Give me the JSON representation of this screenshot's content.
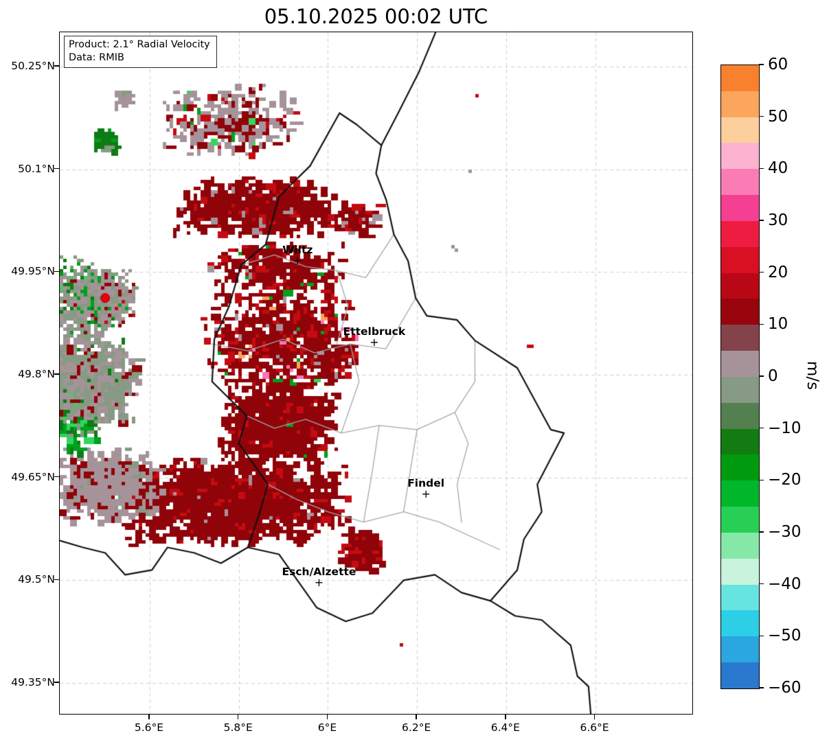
{
  "title": "05.10.2025 00:02 UTC",
  "info_box": {
    "product": "Product: 2.1° Radial Velocity",
    "data_source": "Data: RMIB"
  },
  "map": {
    "extent": {
      "lon_min": 5.398,
      "lon_max": 6.818,
      "lat_min": 49.305,
      "lat_max": 50.3
    },
    "x_ticks": [
      {
        "label": "5.6°E",
        "lon": 5.6
      },
      {
        "label": "5.8°E",
        "lon": 5.8
      },
      {
        "label": "6°E",
        "lon": 6.0
      },
      {
        "label": "6.2°E",
        "lon": 6.2
      },
      {
        "label": "6.4°E",
        "lon": 6.4
      },
      {
        "label": "6.6°E",
        "lon": 6.6
      }
    ],
    "y_ticks": [
      {
        "label": "50.25°N",
        "lat": 50.25
      },
      {
        "label": "50.1°N",
        "lat": 50.1
      },
      {
        "label": "49.95°N",
        "lat": 49.95
      },
      {
        "label": "49.8°N",
        "lat": 49.8
      },
      {
        "label": "49.65°N",
        "lat": 49.65
      },
      {
        "label": "49.5°N",
        "lat": 49.5
      },
      {
        "label": "49.35°N",
        "lat": 49.35
      }
    ],
    "cities": [
      {
        "name": "Wiltz",
        "lon": 5.932,
        "lat": 49.966
      },
      {
        "name": "Ettelbruck",
        "lon": 6.104,
        "lat": 49.847
      },
      {
        "name": "Findel",
        "lon": 6.22,
        "lat": 49.626
      },
      {
        "name": "Esch/Alzette",
        "lon": 5.98,
        "lat": 49.496
      }
    ],
    "radar_site": {
      "lon": 5.5,
      "lat": 49.912,
      "color": "#e8000b"
    },
    "grid_color": "#cfcfcf",
    "palette": {
      "dr": "#8f0309",
      "r": "#c50b12",
      "br": "#e51e25",
      "mg": "#a6939a",
      "gg": "#879a83",
      "dg": "#0e7c16",
      "g": "#00a01c",
      "lg": "#2fd85e",
      "pk": "#fb74b8",
      "or": "#fba55e",
      "cy": "#6fe8e4"
    },
    "radial": {
      "base": 46,
      "lobe": 68,
      "dir": 170,
      "step_deg": 1.4,
      "skip": 0.1,
      "palette_east": [
        [
          "mg",
          0.55
        ],
        [
          "gg",
          0.25
        ],
        [
          "dr",
          0.09
        ],
        [
          "r",
          0.03
        ],
        [
          "dg",
          0.04
        ],
        [
          "g",
          0.04
        ]
      ],
      "palette_west": [
        [
          "gg",
          0.42
        ],
        [
          "mg",
          0.38
        ],
        [
          "dg",
          0.08
        ],
        [
          "g",
          0.08
        ],
        [
          "lg",
          0.02
        ],
        [
          "dr",
          0.02
        ]
      ]
    },
    "echoes": [
      {
        "name": "nw-scatter",
        "lon": 5.78,
        "lat": 50.17,
        "sx": 0.16,
        "sy": 0.055,
        "n": 300,
        "palette": [
          [
            "mg",
            0.58
          ],
          [
            "dr",
            0.3
          ],
          [
            "g",
            0.04
          ],
          [
            "lg",
            0.03
          ],
          [
            "r",
            0.05
          ]
        ]
      },
      {
        "name": "nw-green-patch",
        "lon": 5.495,
        "lat": 50.145,
        "sx": 0.03,
        "sy": 0.02,
        "n": 55,
        "palette": [
          [
            "dg",
            0.7
          ],
          [
            "g",
            0.22
          ],
          [
            "gg",
            0.08
          ]
        ]
      },
      {
        "name": "nw-gray-patch",
        "lon": 5.545,
        "lat": 50.205,
        "sx": 0.025,
        "sy": 0.013,
        "n": 22,
        "palette": [
          [
            "mg",
            0.75
          ],
          [
            "gg",
            0.25
          ]
        ]
      },
      {
        "name": "north-red-band",
        "lon": 5.845,
        "lat": 50.045,
        "sx": 0.2,
        "sy": 0.045,
        "n": 620,
        "palette": [
          [
            "dr",
            0.85
          ],
          [
            "r",
            0.12
          ],
          [
            "mg",
            0.03
          ]
        ]
      },
      {
        "name": "north-band-east-specks",
        "lon": 6.065,
        "lat": 50.025,
        "sx": 0.06,
        "sy": 0.035,
        "n": 60,
        "palette": [
          [
            "dr",
            0.78
          ],
          [
            "r",
            0.12
          ],
          [
            "mg",
            0.1
          ]
        ]
      },
      {
        "name": "wiltz-band",
        "lon": 5.885,
        "lat": 49.952,
        "sx": 0.16,
        "sy": 0.045,
        "n": 330,
        "palette": [
          [
            "dr",
            0.8
          ],
          [
            "r",
            0.14
          ],
          [
            "mg",
            0.03
          ],
          [
            "g",
            0.03
          ]
        ]
      },
      {
        "name": "central-cluster",
        "lon": 5.895,
        "lat": 49.852,
        "sx": 0.18,
        "sy": 0.075,
        "n": 680,
        "palette": [
          [
            "dr",
            0.76
          ],
          [
            "r",
            0.16
          ],
          [
            "mg",
            0.03
          ],
          [
            "pk",
            0.02
          ],
          [
            "or",
            0.01
          ],
          [
            "g",
            0.02
          ]
        ]
      },
      {
        "name": "ettelbruck-west-specks",
        "lon": 6.02,
        "lat": 49.83,
        "sx": 0.05,
        "sy": 0.035,
        "n": 45,
        "palette": [
          [
            "dr",
            0.7
          ],
          [
            "r",
            0.2
          ],
          [
            "mg",
            0.1
          ]
        ]
      },
      {
        "name": "central-red-mass",
        "lon": 5.885,
        "lat": 49.73,
        "sx": 0.14,
        "sy": 0.065,
        "n": 900,
        "palette": [
          [
            "dr",
            0.88
          ],
          [
            "r",
            0.1
          ],
          [
            "g",
            0.02
          ]
        ]
      },
      {
        "name": "south-red-band",
        "lon": 5.79,
        "lat": 49.615,
        "sx": 0.26,
        "sy": 0.065,
        "n": 1500,
        "palette": [
          [
            "dr",
            0.9
          ],
          [
            "r",
            0.08
          ],
          [
            "mg",
            0.02
          ]
        ]
      },
      {
        "name": "southwest-mauve-band",
        "lon": 5.5,
        "lat": 49.64,
        "sx": 0.13,
        "sy": 0.055,
        "n": 560,
        "palette": [
          [
            "mg",
            0.78
          ],
          [
            "dr",
            0.18
          ],
          [
            "gg",
            0.04
          ]
        ]
      },
      {
        "name": "esch-blob",
        "lon": 6.075,
        "lat": 49.545,
        "sx": 0.05,
        "sy": 0.033,
        "n": 170,
        "palette": [
          [
            "dr",
            0.85
          ],
          [
            "r",
            0.15
          ]
        ]
      },
      {
        "name": "west-green-cluster",
        "lon": 5.432,
        "lat": 49.745,
        "sx": 0.06,
        "sy": 0.06,
        "n": 260,
        "palette": [
          [
            "g",
            0.32
          ],
          [
            "dg",
            0.3
          ],
          [
            "lg",
            0.14
          ],
          [
            "gg",
            0.24
          ]
        ]
      },
      {
        "name": "radar-southwest-skirt",
        "lon": 5.47,
        "lat": 49.795,
        "sx": 0.11,
        "sy": 0.07,
        "n": 480,
        "palette": [
          [
            "gg",
            0.44
          ],
          [
            "mg",
            0.44
          ],
          [
            "dg",
            0.05
          ],
          [
            "dr",
            0.07
          ]
        ]
      }
    ],
    "specks": [
      [
        6.335,
        50.205,
        "r"
      ],
      [
        6.318,
        50.095,
        "mg"
      ],
      [
        6.279,
        49.985,
        "gg"
      ],
      [
        6.292,
        49.98,
        "mg"
      ],
      [
        6.447,
        49.843,
        "r"
      ],
      [
        6.163,
        49.407,
        "r"
      ],
      [
        5.415,
        50.275,
        "mg"
      ],
      [
        5.45,
        50.287,
        "gg"
      ],
      [
        6.02,
        49.885,
        "g"
      ],
      [
        5.975,
        49.79,
        "lg"
      ]
    ],
    "borders": {
      "country_color": "#111111",
      "region_color": "#a6a6a6",
      "country": [
        [
          [
            6.245,
            50.305
          ],
          [
            6.205,
            50.243
          ],
          [
            6.156,
            50.18
          ],
          [
            6.12,
            50.135
          ]
        ],
        [
          [
            6.026,
            50.182
          ],
          [
            6.065,
            50.165
          ],
          [
            6.12,
            50.135
          ],
          [
            6.108,
            50.094
          ],
          [
            6.131,
            50.055
          ],
          [
            6.148,
            50.005
          ],
          [
            6.18,
            49.966
          ],
          [
            6.197,
            49.912
          ],
          [
            6.222,
            49.886
          ],
          [
            6.29,
            49.88
          ],
          [
            6.33,
            49.85
          ],
          [
            6.425,
            49.81
          ],
          [
            6.5,
            49.72
          ],
          [
            6.53,
            49.715
          ],
          [
            6.47,
            49.64
          ],
          [
            6.48,
            49.6
          ],
          [
            6.44,
            49.56
          ],
          [
            6.425,
            49.515
          ],
          [
            6.365,
            49.47
          ],
          [
            6.3,
            49.482
          ],
          [
            6.24,
            49.508
          ],
          [
            6.17,
            49.5
          ],
          [
            6.1,
            49.452
          ],
          [
            6.04,
            49.44
          ],
          [
            5.975,
            49.46
          ],
          [
            5.89,
            49.538
          ],
          [
            5.82,
            49.548
          ],
          [
            5.845,
            49.595
          ],
          [
            5.865,
            49.64
          ],
          [
            5.8,
            49.7
          ],
          [
            5.818,
            49.74
          ],
          [
            5.74,
            49.79
          ],
          [
            5.745,
            49.852
          ],
          [
            5.778,
            49.9
          ],
          [
            5.805,
            49.96
          ],
          [
            5.86,
            49.99
          ],
          [
            5.89,
            50.06
          ],
          [
            5.96,
            50.105
          ],
          [
            6.026,
            50.182
          ]
        ],
        [
          [
            5.82,
            49.548
          ],
          [
            5.76,
            49.525
          ],
          [
            5.7,
            49.54
          ],
          [
            5.64,
            49.548
          ],
          [
            5.605,
            49.515
          ],
          [
            5.545,
            49.508
          ],
          [
            5.5,
            49.54
          ],
          [
            5.45,
            49.548
          ],
          [
            5.398,
            49.558
          ]
        ],
        [
          [
            6.365,
            49.47
          ],
          [
            6.42,
            49.448
          ],
          [
            6.48,
            49.442
          ],
          [
            6.545,
            49.405
          ],
          [
            6.56,
            49.36
          ],
          [
            6.585,
            49.345
          ],
          [
            6.59,
            49.305
          ]
        ]
      ],
      "regions": [
        [
          [
            5.805,
            49.96
          ],
          [
            5.88,
            49.975
          ],
          [
            5.95,
            49.958
          ],
          [
            6.02,
            49.952
          ],
          [
            6.085,
            49.942
          ],
          [
            6.148,
            50.005
          ]
        ],
        [
          [
            5.74,
            49.845
          ],
          [
            5.82,
            49.835
          ],
          [
            5.9,
            49.852
          ],
          [
            5.97,
            49.832
          ],
          [
            6.05,
            49.845
          ],
          [
            6.13,
            49.838
          ],
          [
            6.197,
            49.912
          ]
        ],
        [
          [
            5.818,
            49.74
          ],
          [
            5.88,
            49.722
          ],
          [
            5.95,
            49.735
          ],
          [
            6.03,
            49.715
          ],
          [
            6.115,
            49.726
          ],
          [
            6.2,
            49.72
          ],
          [
            6.285,
            49.745
          ]
        ],
        [
          [
            5.865,
            49.64
          ],
          [
            5.93,
            49.618
          ],
          [
            6.0,
            49.6
          ],
          [
            6.08,
            49.585
          ],
          [
            6.17,
            49.6
          ],
          [
            6.25,
            49.585
          ],
          [
            6.385,
            49.545
          ]
        ],
        [
          [
            6.02,
            49.952
          ],
          [
            6.045,
            49.9
          ],
          [
            6.02,
            49.845
          ]
        ],
        [
          [
            6.05,
            49.845
          ],
          [
            6.07,
            49.79
          ],
          [
            6.03,
            49.715
          ]
        ],
        [
          [
            6.285,
            49.745
          ],
          [
            6.33,
            49.79
          ],
          [
            6.33,
            49.85
          ]
        ],
        [
          [
            6.285,
            49.745
          ],
          [
            6.315,
            49.7
          ],
          [
            6.29,
            49.64
          ],
          [
            6.3,
            49.585
          ]
        ],
        [
          [
            6.2,
            49.72
          ],
          [
            6.185,
            49.66
          ],
          [
            6.17,
            49.6
          ]
        ],
        [
          [
            6.115,
            49.726
          ],
          [
            6.1,
            49.66
          ],
          [
            6.08,
            49.585
          ]
        ]
      ]
    }
  },
  "colorbar": {
    "unit": "m/s",
    "vmin": -60,
    "vmax": 60,
    "tick_values": [
      60,
      50,
      40,
      30,
      20,
      10,
      0,
      -10,
      -20,
      -30,
      -40,
      -50,
      -60
    ],
    "tick_labels": [
      "60",
      "50",
      "40",
      "30",
      "20",
      "10",
      "0",
      "−10",
      "−20",
      "−30",
      "−40",
      "−50",
      "−60"
    ],
    "colors_top_to_bottom": [
      "#f9812e",
      "#fba55d",
      "#fdcf9d",
      "#fdb3cf",
      "#fb7cb5",
      "#f53f92",
      "#ee1c40",
      "#d91022",
      "#ba0715",
      "#99030c",
      "#84434b",
      "#a6939a",
      "#879a83",
      "#54804f",
      "#127c12",
      "#009a10",
      "#00b62a",
      "#27d055",
      "#86e8a6",
      "#c8f4de",
      "#66e4e0",
      "#2ccfe6",
      "#2aa6e0",
      "#2a79cf"
    ]
  }
}
